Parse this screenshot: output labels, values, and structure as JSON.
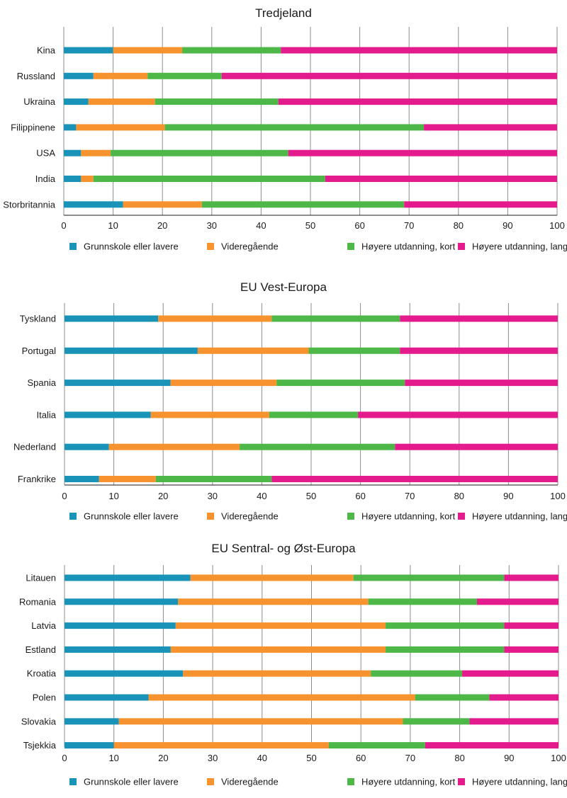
{
  "colors": {
    "grunnskole": "#1a93b8",
    "videregaende": "#f7932e",
    "hoyere_kort": "#4db848",
    "hoyere_lang": "#e31b8c",
    "grid": "#8c8c8c",
    "axis": "#1a1a1a"
  },
  "chart_data": [
    {
      "type": "bar",
      "orientation": "horizontal",
      "stacked": true,
      "title": "Tredjeland",
      "categories": [
        "Kina",
        "Russland",
        "Ukraina",
        "Filippinene",
        "USA",
        "India",
        "Storbritannia"
      ],
      "series": [
        {
          "name": "Grunnskole eller lavere",
          "values": [
            10,
            6,
            5,
            2.5,
            3.5,
            3.5,
            12
          ]
        },
        {
          "name": "Videregående",
          "values": [
            14,
            11,
            13.5,
            18,
            6,
            2.5,
            16
          ]
        },
        {
          "name": "Høyere utdanning, kort",
          "values": [
            20,
            15,
            25,
            52.5,
            36,
            47,
            41
          ]
        },
        {
          "name": "Høyere utdanning, lang",
          "values": [
            56,
            68,
            56.5,
            27,
            54.5,
            47,
            31
          ]
        }
      ],
      "xlim": [
        0,
        100
      ],
      "xticks": [
        "0",
        "10",
        "20",
        "30",
        "40",
        "50",
        "60",
        "70",
        "80",
        "90",
        "100"
      ],
      "grid": true,
      "legend": "bottom"
    },
    {
      "type": "bar",
      "orientation": "horizontal",
      "stacked": true,
      "title": "EU Vest-Europa",
      "categories": [
        "Tyskland",
        "Portugal",
        "Spania",
        "Italia",
        "Nederland",
        "Frankrike"
      ],
      "series": [
        {
          "name": "Grunnskole eller lavere",
          "values": [
            19,
            27,
            21.5,
            17.5,
            9,
            7
          ]
        },
        {
          "name": "Videregående",
          "values": [
            23,
            22.5,
            21.5,
            24,
            26.5,
            11.5
          ]
        },
        {
          "name": "Høyere utdanning, kort",
          "values": [
            26,
            18.5,
            26,
            18,
            31.5,
            23.5
          ]
        },
        {
          "name": "Høyere utdanning, lang",
          "values": [
            32,
            32,
            31,
            40.5,
            33,
            58
          ]
        }
      ],
      "xlim": [
        0,
        100
      ],
      "xticks": [
        "0",
        "10",
        "20",
        "30",
        "40",
        "50",
        "60",
        "70",
        "80",
        "90",
        "100"
      ],
      "grid": true,
      "legend": "bottom"
    },
    {
      "type": "bar",
      "orientation": "horizontal",
      "stacked": true,
      "title": "EU Sentral- og Øst-Europa",
      "categories": [
        "Litauen",
        "Romania",
        "Latvia",
        "Estland",
        "Kroatia",
        "Polen",
        "Slovakia",
        "Tsjekkia"
      ],
      "series": [
        {
          "name": "Grunnskole eller lavere",
          "values": [
            25.5,
            23,
            22.5,
            21.5,
            24,
            17,
            11,
            10
          ]
        },
        {
          "name": "Videregående",
          "values": [
            33,
            38.5,
            42.5,
            43.5,
            38,
            54,
            57.5,
            43.5
          ]
        },
        {
          "name": "Høyere utdanning, kort",
          "values": [
            30.5,
            22,
            24,
            24,
            18.5,
            15,
            13.5,
            19.5
          ]
        },
        {
          "name": "Høyere utdanning, lang",
          "values": [
            11,
            16.5,
            11,
            11,
            19.5,
            14,
            18,
            27
          ]
        }
      ],
      "xlim": [
        0,
        100
      ],
      "xticks": [
        "0",
        "10",
        "20",
        "30",
        "40",
        "50",
        "60",
        "70",
        "80",
        "90",
        "100"
      ],
      "grid": true,
      "legend": "bottom"
    }
  ]
}
